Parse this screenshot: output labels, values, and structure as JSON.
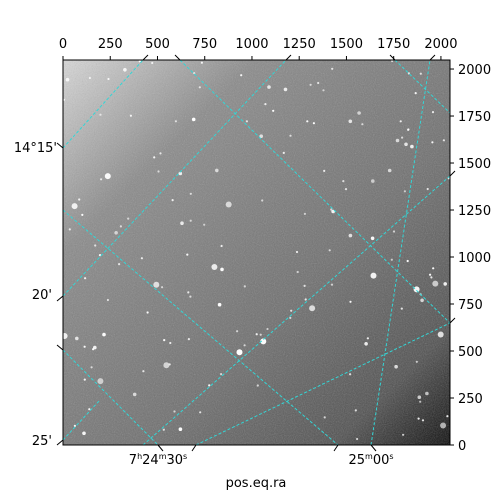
{
  "chart_data": {
    "type": "image",
    "description_axes": "astronomical image with world-coordinate grid",
    "pixel_axes": {
      "x_range": [
        0,
        2048
      ],
      "y_range": [
        0,
        2048
      ],
      "x_ticks": [
        0,
        250,
        500,
        750,
        1000,
        1250,
        1500,
        1750,
        2000
      ],
      "y_ticks": [
        0,
        250,
        500,
        750,
        1000,
        1250,
        1500,
        1750,
        2000
      ]
    },
    "world_axes": {
      "xlabel": "pos.eq.ra",
      "ra_tick_labels": [
        {
          "base": "7",
          "h": "h",
          "m_val": "24",
          "m": "m",
          "s_val": "30",
          "s": "s"
        },
        {
          "base": "25",
          "m": "m",
          "s_val": "00",
          "s": "s"
        }
      ],
      "dec_tick_labels": [
        "14°15'",
        "20'",
        "25'"
      ]
    },
    "grid": true,
    "grid_color": "#33d6d6",
    "image_colormap": "gray"
  }
}
